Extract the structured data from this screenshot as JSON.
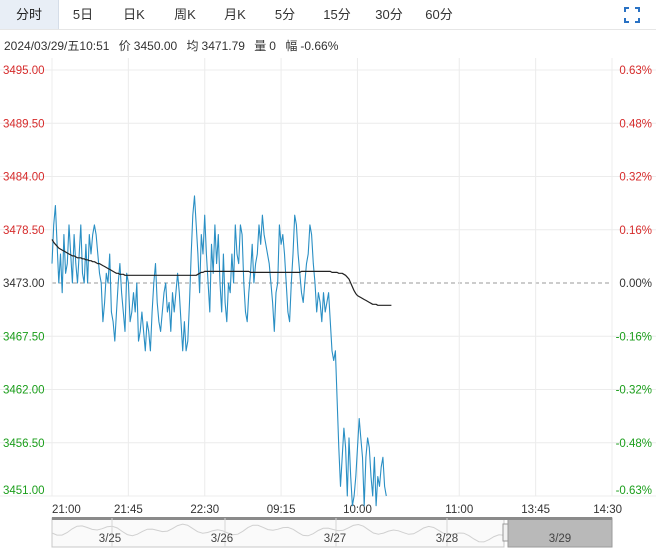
{
  "tabs": [
    "分时",
    "5日",
    "日K",
    "周K",
    "月K",
    "5分",
    "15分",
    "30分",
    "60分"
  ],
  "active_tab": 0,
  "info": {
    "datetime": "2024/03/29/五10:51",
    "price_label": "价",
    "price": "3450.00",
    "avg_label": "均",
    "avg": "3471.79",
    "vol_label": "量",
    "vol": "0",
    "amp_label": "幅",
    "amp": "-0.66%"
  },
  "colors": {
    "price_line": "#2a8fc4",
    "avg_line": "#222222",
    "up": "#d62b2b",
    "down": "#1b9e1b",
    "neutral": "#333333",
    "grid": "#ececec",
    "base": "#999999",
    "nav_fill": "#b9b9b9"
  },
  "chart_data": {
    "type": "line",
    "title": "",
    "xlabel": "",
    "ylabel": "",
    "ylim": [
      3451.0,
      3495.0
    ],
    "base_price": 3473.0,
    "grid": true,
    "y_ticks_left": [
      "3495.00",
      "3489.50",
      "3484.00",
      "3478.50",
      "3473.00",
      "3467.50",
      "3462.00",
      "3456.50",
      "3451.00"
    ],
    "y_ticks_right": [
      "0.63%",
      "0.48%",
      "0.32%",
      "0.16%",
      "0.00%",
      "-0.16%",
      "-0.32%",
      "-0.48%",
      "-0.63%"
    ],
    "x_ticks": [
      "21:00",
      "21:45",
      "22:30",
      "09:15",
      "10:00",
      "11:00",
      "13:45",
      "14:30"
    ],
    "x_tick_slots": [
      0,
      45,
      90,
      135,
      180,
      240,
      285,
      330
    ],
    "total_slots": 330,
    "series": [
      {
        "values": [
          3475,
          3479,
          3481,
          3477,
          3473,
          3476,
          3472,
          3478,
          3474,
          3475,
          3479,
          3476,
          3473,
          3478,
          3475,
          3473,
          3476,
          3479,
          3474,
          3473,
          3477,
          3473,
          3478,
          3476,
          3478,
          3479,
          3478,
          3476,
          3474,
          3473,
          3469,
          3471,
          3474,
          3473,
          3476,
          3470,
          3469,
          3467,
          3470,
          3473,
          3475,
          3472,
          3470,
          3468,
          3474,
          3473,
          3469,
          3470,
          3472,
          3470,
          3473,
          3467,
          3468,
          3470,
          3468,
          3466,
          3469,
          3468,
          3466,
          3470,
          3473,
          3475,
          3471,
          3469,
          3468,
          3470,
          3472,
          3473,
          3470,
          3471,
          3468,
          3472,
          3470,
          3472,
          3474,
          3472,
          3469,
          3466,
          3469,
          3466,
          3467,
          3471,
          3476,
          3480,
          3482,
          3479,
          3476,
          3472,
          3478,
          3476,
          3480,
          3476,
          3473,
          3470,
          3477,
          3474,
          3479,
          3475,
          3478,
          3473,
          3470,
          3476,
          3471,
          3469,
          3473,
          3472,
          3476,
          3473,
          3479,
          3476,
          3475,
          3479,
          3478,
          3473,
          3470,
          3469,
          3472,
          3474,
          3477,
          3473,
          3475,
          3476,
          3479,
          3477,
          3480,
          3478,
          3477,
          3476,
          3475,
          3473,
          3471,
          3468,
          3472,
          3473,
          3479,
          3477,
          3478,
          3476,
          3473,
          3470,
          3469,
          3473,
          3476,
          3480,
          3479,
          3476,
          3474,
          3472,
          3471,
          3473,
          3475,
          3476,
          3479,
          3478,
          3475,
          3473,
          3470,
          3472,
          3471,
          3469,
          3472,
          3470,
          3471,
          3472,
          3469,
          3466,
          3465,
          3466,
          3461,
          3456,
          3452,
          3455,
          3458,
          3456,
          3451,
          3457,
          3453,
          3450,
          3451,
          3453,
          3456,
          3459,
          3457,
          3455,
          3450,
          3455,
          3457,
          3456,
          3453,
          3451,
          3455,
          3450,
          3453,
          3452,
          3454,
          3455,
          3452,
          3451
        ],
        "color": "#2a8fc4"
      },
      {
        "values": [
          3477.5,
          3477.2,
          3477.0,
          3476.8,
          3476.6,
          3476.5,
          3476.4,
          3476.3,
          3476.2,
          3476.1,
          3476.0,
          3475.9,
          3475.8,
          3475.8,
          3475.7,
          3475.6,
          3475.6,
          3475.6,
          3475.5,
          3475.5,
          3475.4,
          3475.4,
          3475.3,
          3475.3,
          3475.2,
          3475.2,
          3475.1,
          3475.0,
          3475.0,
          3474.9,
          3474.8,
          3474.7,
          3474.6,
          3474.5,
          3474.4,
          3474.3,
          3474.2,
          3474.1,
          3474.0,
          3474.0,
          3473.9,
          3473.9,
          3473.9,
          3473.8,
          3473.8,
          3473.8,
          3473.8,
          3473.8,
          3473.8,
          3473.8,
          3473.8,
          3473.8,
          3473.8,
          3473.8,
          3473.8,
          3473.8,
          3473.8,
          3473.8,
          3473.8,
          3473.8,
          3473.8,
          3473.8,
          3473.8,
          3473.8,
          3473.8,
          3473.8,
          3473.8,
          3473.8,
          3473.8,
          3473.8,
          3473.8,
          3473.8,
          3473.8,
          3473.8,
          3473.8,
          3473.8,
          3473.8,
          3473.8,
          3473.8,
          3473.8,
          3473.8,
          3473.8,
          3473.8,
          3473.8,
          3473.8,
          3473.8,
          3473.9,
          3474.0,
          3474.1,
          3474.1,
          3474.2,
          3474.2,
          3474.2,
          3474.2,
          3474.2,
          3474.2,
          3474.2,
          3474.2,
          3474.2,
          3474.2,
          3474.2,
          3474.2,
          3474.2,
          3474.2,
          3474.2,
          3474.2,
          3474.2,
          3474.2,
          3474.2,
          3474.2,
          3474.2,
          3474.2,
          3474.2,
          3474.2,
          3474.2,
          3474.2,
          3474.2,
          3474.1,
          3474.1,
          3474.1,
          3474.1,
          3474.1,
          3474.1,
          3474.1,
          3474.1,
          3474.1,
          3474.1,
          3474.1,
          3474.1,
          3474.1,
          3474.1,
          3474.1,
          3474.1,
          3474.1,
          3474.1,
          3474.1,
          3474.1,
          3474.1,
          3474.1,
          3474.1,
          3474.1,
          3474.1,
          3474.1,
          3474.1,
          3474.1,
          3474.1,
          3474.1,
          3474.2,
          3474.2,
          3474.2,
          3474.2,
          3474.2,
          3474.2,
          3474.2,
          3474.2,
          3474.2,
          3474.2,
          3474.2,
          3474.2,
          3474.2,
          3474.2,
          3474.2,
          3474.2,
          3474.2,
          3474.2,
          3474.1,
          3474.1,
          3474.1,
          3474.1,
          3474.0,
          3474.0,
          3474.0,
          3473.9,
          3473.8,
          3473.6,
          3473.4,
          3473.0,
          3472.6,
          3472.2,
          3471.9,
          3471.7,
          3471.6,
          3471.5,
          3471.4,
          3471.3,
          3471.2,
          3471.1,
          3471.0,
          3470.9,
          3470.8,
          3470.8,
          3470.8,
          3470.7,
          3470.7,
          3470.7,
          3470.7,
          3470.7,
          3470.7,
          3470.7,
          3470.7,
          3470.7
        ],
        "color": "#222222"
      }
    ],
    "navigator": {
      "date_labels": [
        "3/25",
        "3/26",
        "3/27",
        "3/28",
        "3/29"
      ],
      "selected": "3/29"
    }
  }
}
